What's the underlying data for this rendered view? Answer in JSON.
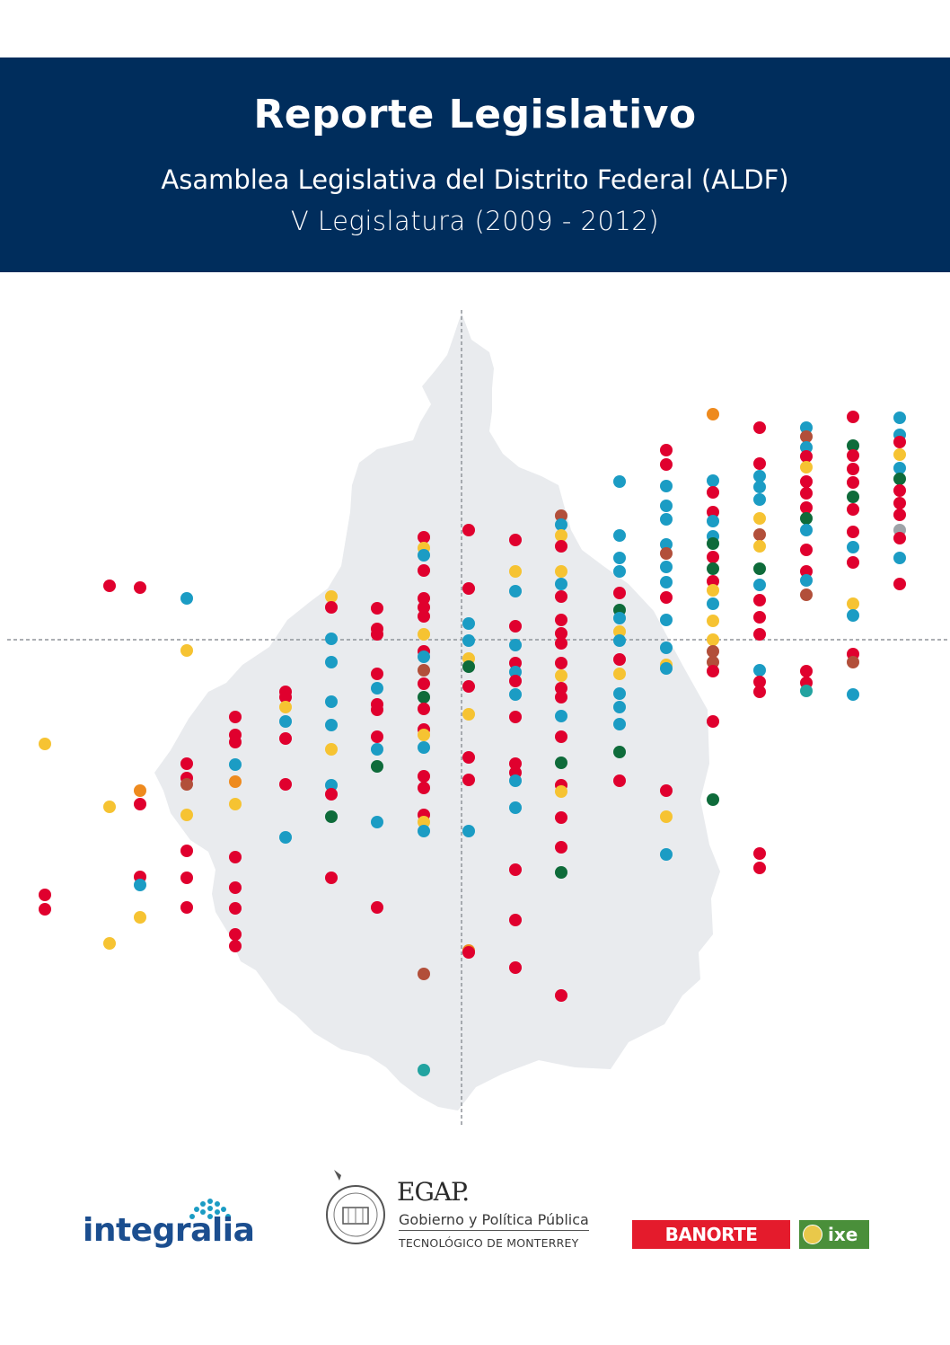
{
  "header": {
    "title": "Reporte Legislativo",
    "subtitle": "Asamblea Legislativa del Distrito Federal (ALDF)",
    "legislature": "V Legislatura (2009 - 2012)"
  },
  "colors": {
    "banner": "#002d5c",
    "map_fill": "#e9ebee",
    "red": "#e0002e",
    "blue": "#1b9cc4",
    "yellow": "#f6c332",
    "green": "#0e6b3a",
    "orange": "#ee8a1e",
    "brown": "#b24f3a",
    "teal": "#22a3a0",
    "gray": "#9ea3a8"
  },
  "logos": {
    "integralia": "integralia",
    "egap": {
      "name": "EGAP.",
      "line1": "Gobierno y Política Pública",
      "line2": "TECNOLÓGICO DE MONTERREY"
    },
    "banorte": "BANORTE",
    "ixe": "ixe"
  }
}
